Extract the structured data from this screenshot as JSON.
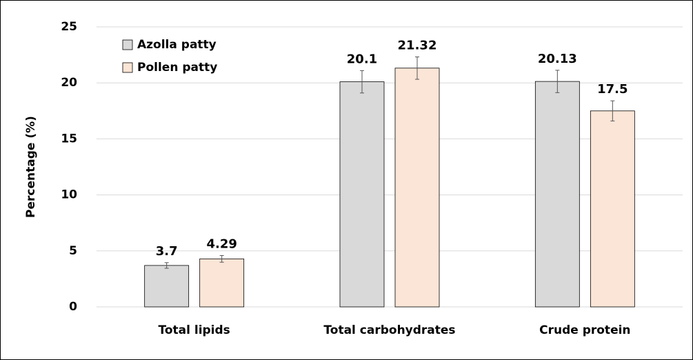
{
  "chart_data": {
    "type": "bar",
    "y_label": "Percentage (%)",
    "categories": [
      "Total lipids",
      "Total carbohydrates",
      "Crude protein"
    ],
    "series": [
      {
        "name": "Azolla patty",
        "color": "#d9d9d9",
        "values": [
          3.7,
          20.1,
          20.13
        ],
        "errors": [
          0.25,
          1.0,
          1.0
        ]
      },
      {
        "name": "Pollen patty",
        "color": "#fbe5d6",
        "values": [
          4.29,
          21.32,
          17.5
        ],
        "errors": [
          0.3,
          1.0,
          0.9
        ]
      }
    ],
    "ylim": [
      0,
      25
    ],
    "yticks": [
      0,
      5,
      10,
      15,
      20,
      25
    ],
    "grid": true,
    "legend": "upper left"
  }
}
